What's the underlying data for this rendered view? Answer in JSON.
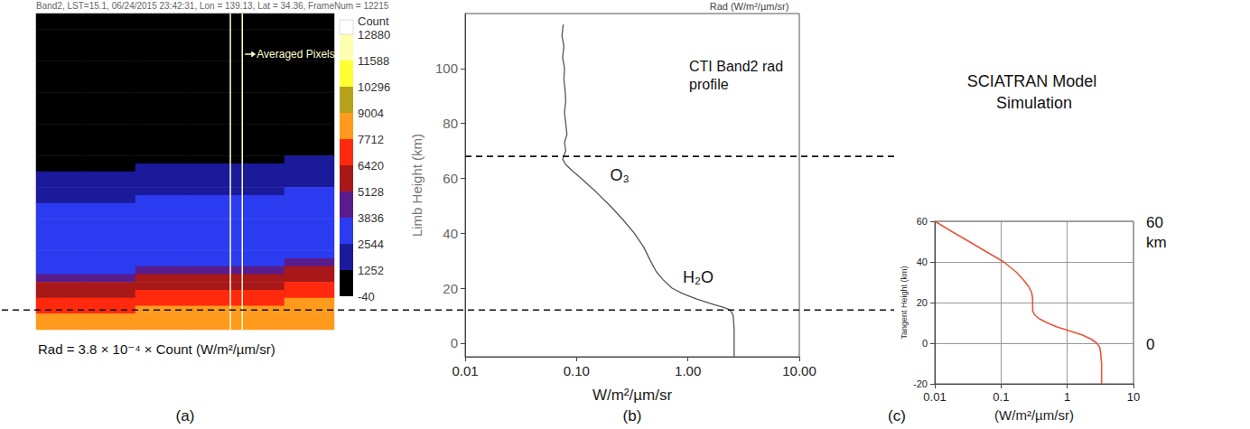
{
  "chart_data": [
    {
      "type": "heatmap",
      "title": "Band2, LST=15.1, 06/24/2015 23:42:31, Lon = 139.13, Lat = 34.36, FrameNum = 12215",
      "panel_label": "(a)",
      "caption": "Rad = 3.8 × 10⁻⁴ × Count (W/m²/µm/sr)",
      "tick_labels": false,
      "counts": [
        [
          0,
          0,
          0,
          0,
          0,
          0
        ],
        [
          0,
          0,
          0,
          0,
          0,
          0
        ],
        [
          0,
          0,
          0,
          0,
          0,
          0
        ],
        [
          0,
          0,
          0,
          0,
          0,
          0
        ],
        [
          0,
          0,
          0,
          0,
          0,
          0
        ],
        [
          0,
          0,
          0,
          0,
          0,
          0
        ],
        [
          0,
          0,
          0,
          0,
          0,
          0
        ],
        [
          0,
          0,
          0,
          0,
          0,
          0
        ],
        [
          0,
          0,
          0,
          0,
          0,
          0
        ],
        [
          0,
          0,
          0,
          0,
          0,
          0
        ],
        [
          0,
          0,
          0,
          0,
          0,
          0
        ],
        [
          0,
          0,
          0,
          0,
          0,
          0
        ],
        [
          0,
          0,
          0,
          0,
          0,
          0
        ],
        [
          0,
          0,
          0,
          0,
          0,
          0
        ],
        [
          0,
          0,
          0,
          0,
          0,
          0
        ],
        [
          0,
          0,
          0,
          0,
          0,
          0
        ],
        [
          0,
          0,
          0,
          0,
          0,
          0
        ],
        [
          0,
          0,
          0,
          0,
          0,
          0
        ],
        [
          0,
          0,
          0,
          0,
          0,
          1400
        ],
        [
          0,
          0,
          1400,
          1400,
          1400,
          1700
        ],
        [
          1400,
          1400,
          1700,
          1700,
          1700,
          2000
        ],
        [
          1700,
          1700,
          2000,
          2000,
          2000,
          2300
        ],
        [
          2000,
          2000,
          2300,
          2300,
          2300,
          2600
        ],
        [
          2300,
          2300,
          2600,
          2600,
          2600,
          2800
        ],
        [
          2600,
          2600,
          2800,
          2800,
          2800,
          3000
        ],
        [
          2800,
          2800,
          3000,
          3000,
          3000,
          3100
        ],
        [
          3000,
          3000,
          3100,
          3100,
          3100,
          3200
        ],
        [
          3100,
          3100,
          3200,
          3200,
          3200,
          3300
        ],
        [
          3200,
          3200,
          3300,
          3300,
          3300,
          3400
        ],
        [
          3300,
          3300,
          3400,
          3400,
          3400,
          3500
        ],
        [
          3400,
          3400,
          3500,
          3500,
          3500,
          3700
        ],
        [
          3500,
          3500,
          3700,
          3700,
          3700,
          4200
        ],
        [
          3700,
          3700,
          4200,
          4200,
          4200,
          5300
        ],
        [
          4200,
          4200,
          5300,
          5300,
          5300,
          5900
        ],
        [
          5300,
          5300,
          5900,
          5900,
          5900,
          6600
        ],
        [
          5900,
          5900,
          6600,
          6600,
          6600,
          7200
        ],
        [
          6600,
          6600,
          7200,
          7200,
          7200,
          7900
        ],
        [
          7200,
          7200,
          7900,
          7900,
          7900,
          8000
        ],
        [
          7900,
          7900,
          8000,
          8000,
          8000,
          8000
        ],
        [
          8000,
          8000,
          8000,
          8000,
          8000,
          8000
        ]
      ],
      "colorbar": {
        "title": "Count",
        "ticks": [
          -40,
          1252,
          2544,
          3836,
          5128,
          6420,
          7712,
          9004,
          10296,
          11588,
          12880
        ],
        "colors": [
          "#000000",
          "#1a1a9a",
          "#2b3cf0",
          "#5a1c8c",
          "#a81818",
          "#ff2a0e",
          "#ff9a1c",
          "#b5a21a",
          "#ffff33",
          "#ffffb0",
          "#ffffff"
        ]
      },
      "annotations": [
        {
          "text": "Averaged Pixels",
          "columns": [
            3.41,
            3.65
          ]
        }
      ]
    },
    {
      "type": "line",
      "panel_label": "(b)",
      "title": "CTI Band2 rad profile",
      "top_label": "Rad (W/m²/µm/sr)",
      "x_label": "W/m²/µm/sr",
      "y_label": "Limb Height (km)",
      "log": "x",
      "grid": false,
      "xlim": [
        0.01,
        10
      ],
      "xticks": [
        0.01,
        {
          "value": 0.1,
          "label": "0.10"
        },
        {
          "value": 1,
          "label": "1.00"
        },
        {
          "value": 10,
          "label": "10.00"
        }
      ],
      "ylim": [
        -5,
        120
      ],
      "yticks": [
        0,
        20,
        40,
        60,
        80,
        100
      ],
      "series": [
        {
          "color": "#555555",
          "x": [
            2.6,
            2.6,
            2.6,
            2.55,
            2.4,
            2.1,
            1.7,
            1.2,
            0.9,
            0.72,
            0.6,
            0.52,
            0.46,
            0.4,
            0.33,
            0.26,
            0.2,
            0.15,
            0.11,
            0.09,
            0.08,
            0.075,
            0.08,
            0.078,
            0.082,
            0.08,
            0.078,
            0.08,
            0.079,
            0.077,
            0.078,
            0.075,
            0.077,
            0.074,
            0.076
          ],
          "y": [
            -5,
            0,
            5,
            10,
            12,
            13,
            14,
            16,
            18,
            20,
            23,
            26,
            30,
            35,
            40,
            45,
            50,
            55,
            60,
            63,
            65,
            67,
            70,
            73,
            76,
            80,
            84,
            88,
            92,
            96,
            100,
            104,
            108,
            112,
            116
          ]
        }
      ],
      "annotations": [
        {
          "text": "O₃",
          "x": 0.2,
          "y": 61
        },
        {
          "text": "H₂O",
          "x": 0.9,
          "y": 24
        }
      ],
      "reference_lines": [
        12,
        68
      ]
    },
    {
      "type": "line",
      "panel_label": "(c)",
      "title": "SCIATRAN Model Simulation",
      "x_label": "(W/m²/µm/sr)",
      "y_label": "Tangent Height (km)",
      "log": "x",
      "grid": true,
      "xlim": [
        0.01,
        10
      ],
      "xticks": [
        0.01,
        0.1,
        1,
        10
      ],
      "ylim": [
        -20,
        60
      ],
      "yticks": [
        -20,
        0,
        20,
        40,
        60
      ],
      "series": [
        {
          "color": "#e8553a",
          "x": [
            3.3,
            3.3,
            3.3,
            3.2,
            3.1,
            2.8,
            2.3,
            1.7,
            1.1,
            0.7,
            0.5,
            0.38,
            0.32,
            0.3,
            0.3,
            0.3,
            0.3,
            0.29,
            0.26,
            0.22,
            0.17,
            0.11,
            0.06,
            0.033,
            0.018,
            0.01
          ],
          "y": [
            -20,
            -15,
            -10,
            -5,
            -2,
            0,
            2,
            4,
            6,
            8,
            10,
            12,
            14,
            16,
            18,
            20,
            22,
            25,
            28,
            31,
            35,
            40,
            45,
            50,
            55,
            60
          ]
        }
      ],
      "side_labels": [
        {
          "value": 60,
          "label": "60 km"
        },
        {
          "value": 0,
          "label": "0"
        }
      ]
    }
  ]
}
